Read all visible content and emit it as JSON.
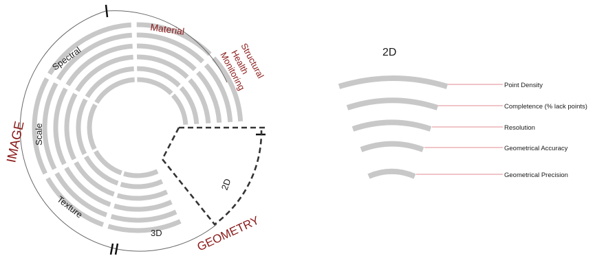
{
  "colors": {
    "ring": "#c8c8c8",
    "category": "#8b1a1a",
    "text": "#1a1a1a",
    "leader": "#e8a0a8",
    "dashed": "#333333",
    "outline": "#666666"
  },
  "left": {
    "categories": {
      "image": "IMAGE",
      "geometry": "GEOMETRY",
      "material": "Material",
      "structural": [
        "Structural",
        "Health",
        "Monitoring"
      ]
    },
    "sublabels": {
      "spectral": "Spectral",
      "scale": "Scale",
      "texture": "Texture",
      "three_d": "3D",
      "two_d": "2D"
    }
  },
  "right": {
    "title": "2D",
    "legend": [
      "Point Density",
      "Completence (% lack points)",
      "Resolution",
      "Geometrical Accuracy",
      "Geometrical Precision"
    ]
  }
}
